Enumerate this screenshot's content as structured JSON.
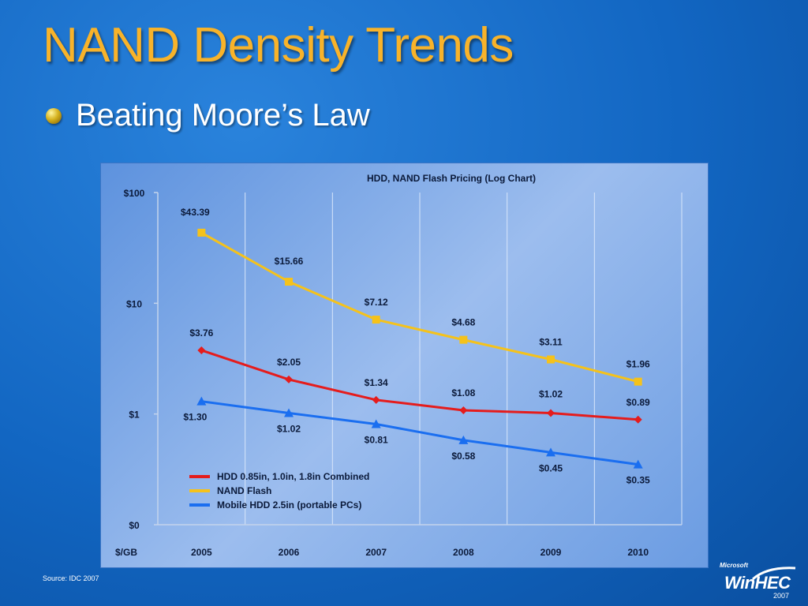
{
  "slide": {
    "title": "NAND Density Trends",
    "bullet": "Beating Moore’s Law",
    "source": "Source: IDC 2007"
  },
  "logo": {
    "brand_small": "Microsoft",
    "brand_main": "WinHEC",
    "year": "2007"
  },
  "chart_data": {
    "type": "line",
    "title": "HDD, NAND Flash Pricing (Log Chart)",
    "x_axis_label": "$/GB",
    "categories": [
      "2005",
      "2006",
      "2007",
      "2008",
      "2009",
      "2010"
    ],
    "y_scale": "log",
    "y_ticks": [
      {
        "value": 0.1,
        "label": "$0"
      },
      {
        "value": 1,
        "label": "$1"
      },
      {
        "value": 10,
        "label": "$10"
      },
      {
        "value": 100,
        "label": "$100"
      }
    ],
    "grid": "vertical",
    "legend_position": "bottom-left",
    "series": [
      {
        "name": "HDD 0.85in, 1.0in, 1.8in Combined",
        "color": "#e51c1c",
        "marker": "diamond",
        "values": [
          3.76,
          2.05,
          1.34,
          1.08,
          1.02,
          0.89
        ],
        "labels": [
          "$3.76",
          "$2.05",
          "$1.34",
          "$1.08",
          "$1.02",
          "$0.89"
        ]
      },
      {
        "name": "NAND Flash",
        "color": "#f5c21b",
        "marker": "square",
        "values": [
          43.39,
          15.66,
          7.12,
          4.68,
          3.11,
          1.96
        ],
        "labels": [
          "$43.39",
          "$15.66",
          "$7.12",
          "$4.68",
          "$3.11",
          "$1.96"
        ]
      },
      {
        "name": "Mobile HDD 2.5in (portable PCs)",
        "color": "#1a6ef0",
        "marker": "triangle",
        "values": [
          1.3,
          1.02,
          0.81,
          0.58,
          0.45,
          0.35
        ],
        "labels": [
          "$1.30",
          "$1.02",
          "$0.81",
          "$0.58",
          "$0.45",
          "$0.35"
        ]
      }
    ]
  }
}
